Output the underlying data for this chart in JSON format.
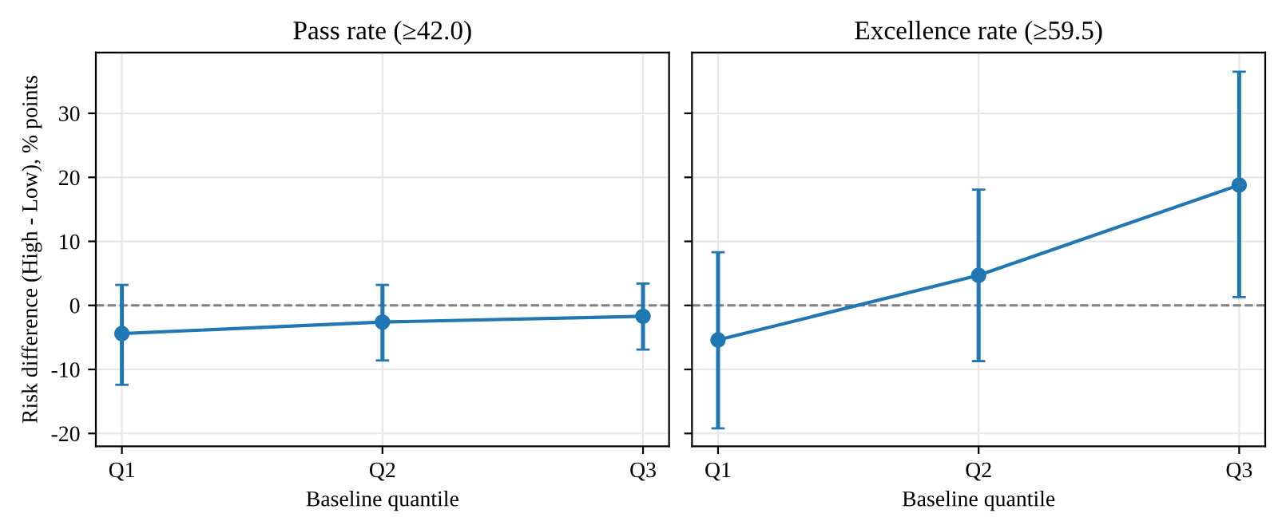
{
  "chart_data": [
    {
      "type": "line",
      "title": "Pass rate (≥42.0)",
      "xlabel": "Baseline quantile",
      "ylabel": "Risk difference (High - Low), % points",
      "categories": [
        "Q1",
        "Q2",
        "Q3"
      ],
      "series": [
        {
          "color": "#1f77b4",
          "values": [
            -4.4,
            -2.6,
            -1.7
          ],
          "errors": [
            [
              -12.4,
              3.2
            ],
            [
              -8.6,
              3.2
            ],
            [
              -6.9,
              3.4
            ]
          ]
        }
      ],
      "ylim": [
        -22,
        39.5
      ],
      "yticks": [
        -20,
        -10,
        0,
        10,
        20,
        30
      ],
      "grid": true,
      "marker": "circle",
      "line_style": "solid",
      "legend": false,
      "ref_lines": [
        {
          "axis": "y",
          "value": 0,
          "color": "#808080",
          "line_style": "dashed"
        }
      ]
    },
    {
      "type": "line",
      "title": "Excellence rate (≥59.5)",
      "xlabel": "Baseline quantile",
      "categories": [
        "Q1",
        "Q2",
        "Q3"
      ],
      "series": [
        {
          "color": "#1f77b4",
          "values": [
            -5.4,
            4.7,
            18.8
          ],
          "errors": [
            [
              -19.2,
              8.3
            ],
            [
              -8.7,
              18.1
            ],
            [
              1.3,
              36.5
            ]
          ]
        }
      ],
      "ylim": [
        -22,
        39.5
      ],
      "yticks": [
        -20,
        -10,
        0,
        10,
        20,
        30
      ],
      "grid": true,
      "marker": "circle",
      "line_style": "solid",
      "legend": false,
      "tick_labels": "x",
      "ref_lines": [
        {
          "axis": "y",
          "value": 0,
          "color": "#808080",
          "line_style": "dashed"
        }
      ]
    }
  ]
}
